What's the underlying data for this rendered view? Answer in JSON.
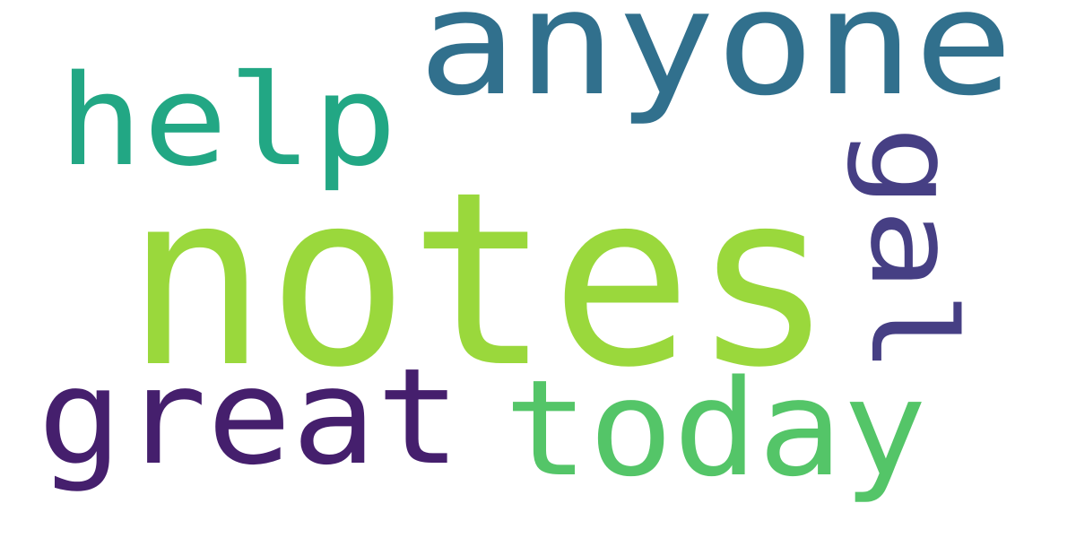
{
  "word_cloud": {
    "words": [
      {
        "text": "notes",
        "color": "#9ad83c",
        "orientation": "horizontal"
      },
      {
        "text": "anyone",
        "color": "#31708d",
        "orientation": "horizontal"
      },
      {
        "text": "great",
        "color": "#451f6d",
        "orientation": "horizontal"
      },
      {
        "text": "today",
        "color": "#54c568",
        "orientation": "horizontal"
      },
      {
        "text": "help",
        "color": "#22a784",
        "orientation": "horizontal"
      },
      {
        "text": "gal",
        "color": "#463f84",
        "orientation": "vertical"
      }
    ]
  }
}
